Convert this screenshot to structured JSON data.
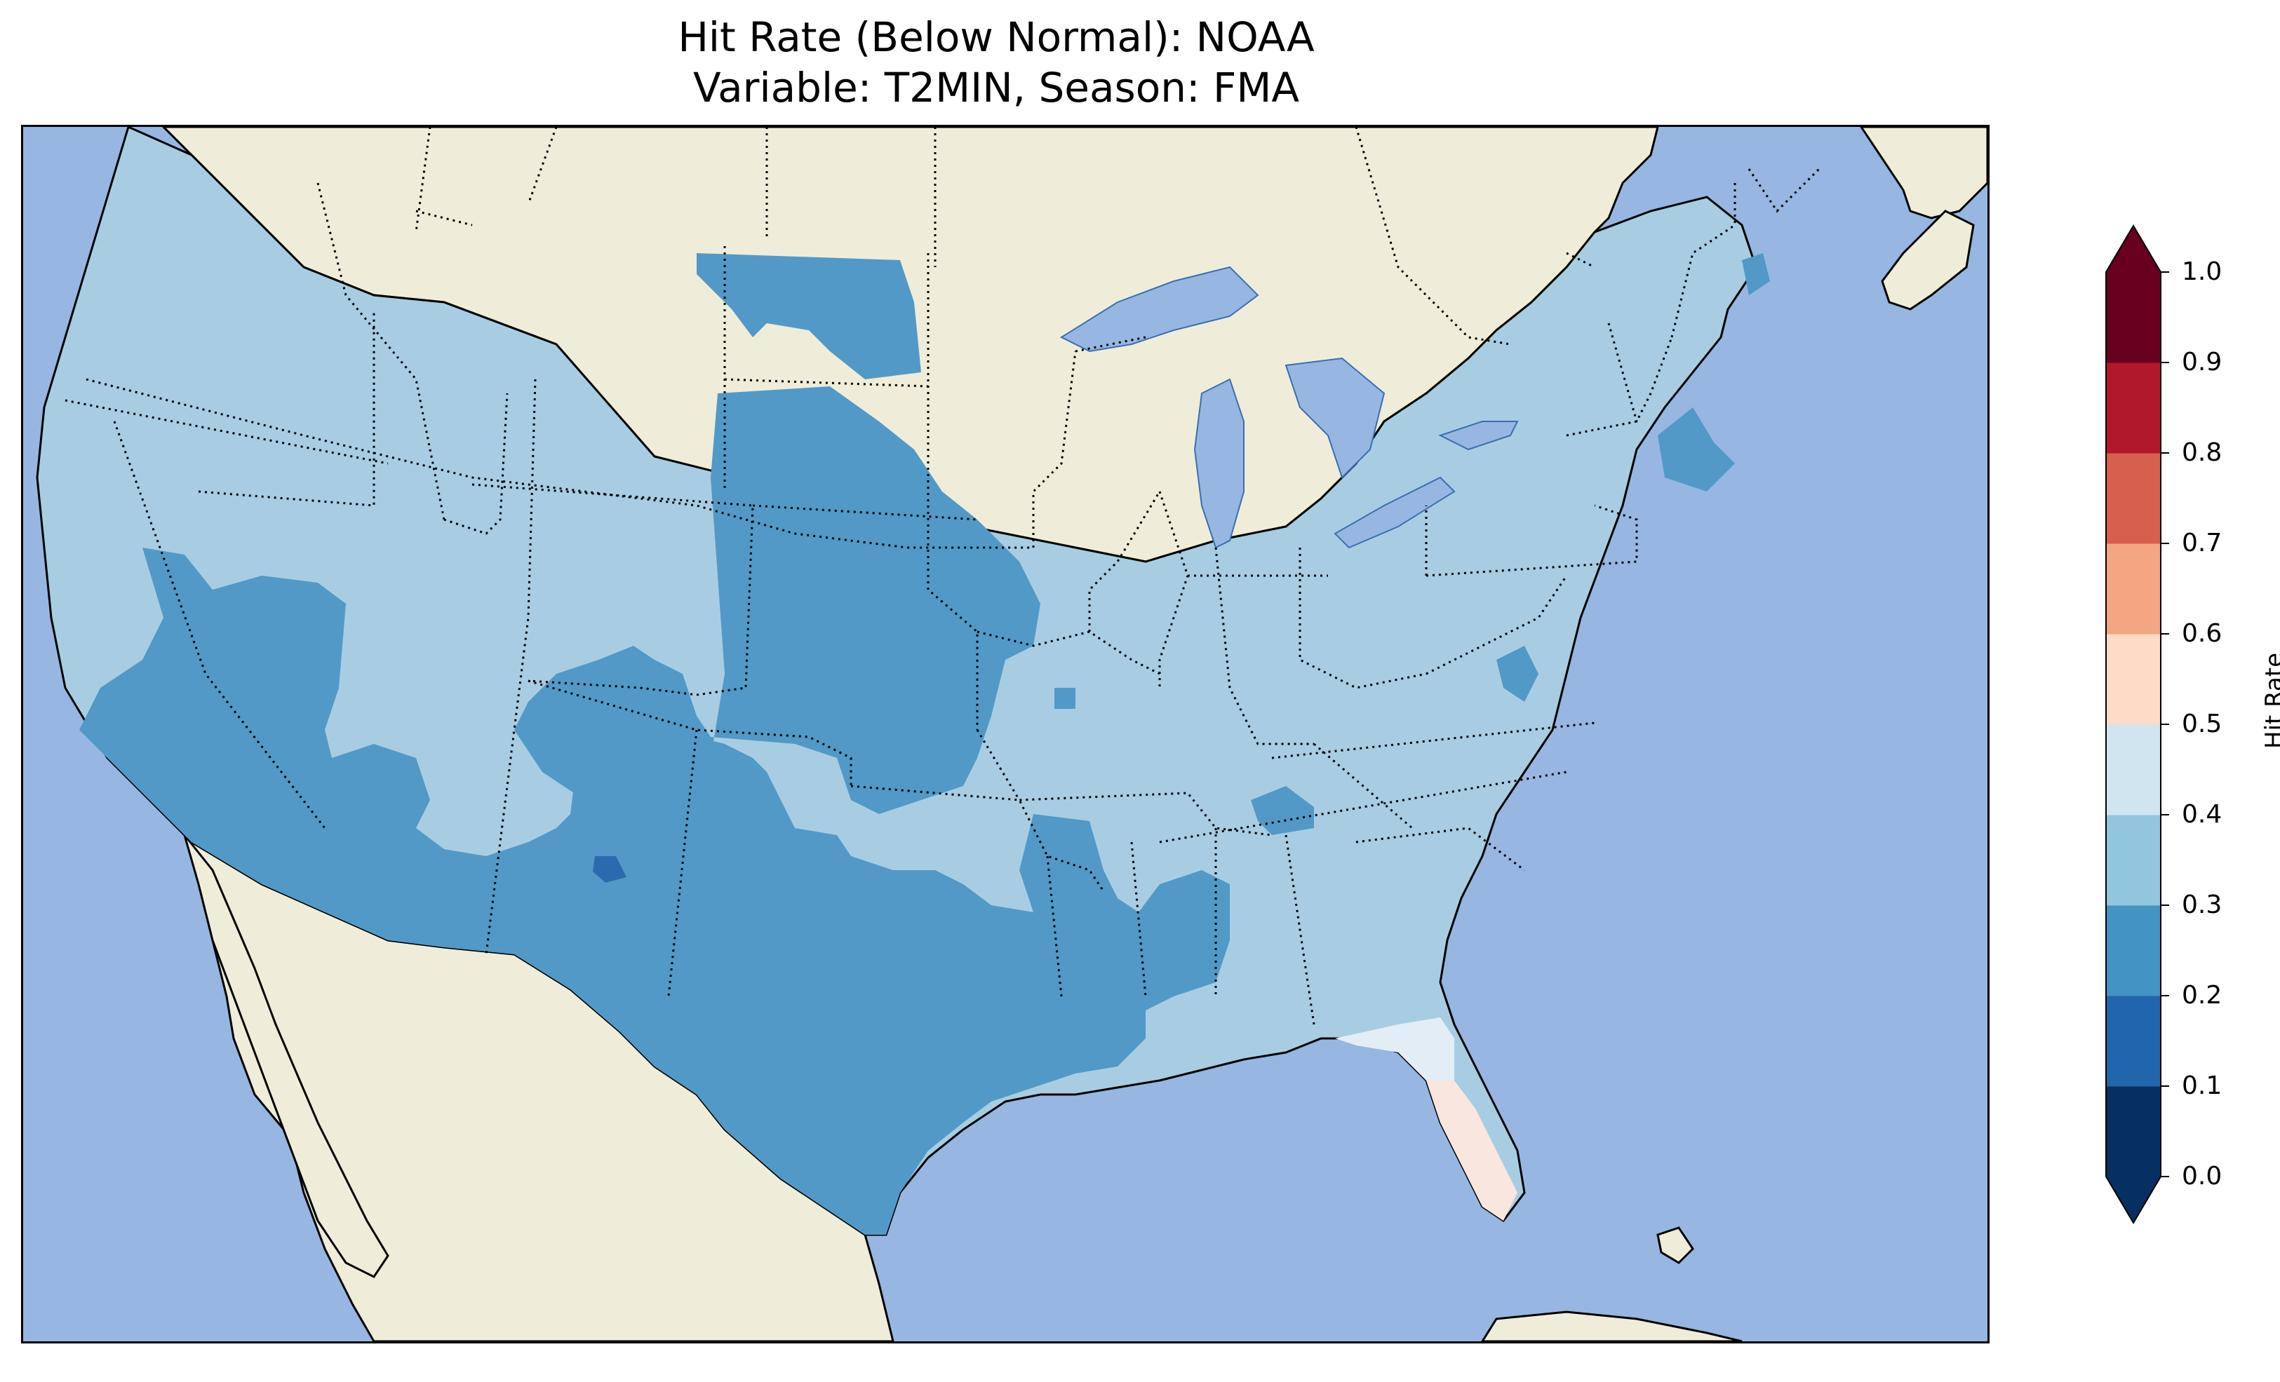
{
  "title": {
    "line1": "Hit Rate (Below Normal): NOAA",
    "line2": "Variable: T2MIN, Season: FMA"
  },
  "map": {
    "ocean_color": "#97b6e1",
    "land_color": "#efedda",
    "lake_color": "#97b6e1",
    "border_style": "dotted",
    "coast_style": "solid-black"
  },
  "colorbar": {
    "label": "Hit Rate",
    "ticks": [
      "0.0",
      "0.1",
      "0.2",
      "0.3",
      "0.4",
      "0.5",
      "0.6",
      "0.7",
      "0.8",
      "0.9",
      "1.0"
    ],
    "bins": [
      {
        "range": [
          0.0,
          0.1
        ],
        "color": "#053061"
      },
      {
        "range": [
          0.1,
          0.2
        ],
        "color": "#2166ac"
      },
      {
        "range": [
          0.2,
          0.3
        ],
        "color": "#4393c3"
      },
      {
        "range": [
          0.3,
          0.4
        ],
        "color": "#92c5de"
      },
      {
        "range": [
          0.4,
          0.5
        ],
        "color": "#d1e5f0"
      },
      {
        "range": [
          0.5,
          0.6
        ],
        "color": "#fddbc7"
      },
      {
        "range": [
          0.6,
          0.7
        ],
        "color": "#f4a582"
      },
      {
        "range": [
          0.7,
          0.8
        ],
        "color": "#d6604d"
      },
      {
        "range": [
          0.8,
          0.9
        ],
        "color": "#b2182b"
      },
      {
        "range": [
          0.9,
          1.0
        ],
        "color": "#67001f"
      }
    ],
    "under_color": "#053061",
    "over_color": "#67001f",
    "extend": "both"
  },
  "regions": [
    {
      "name": "Pacific Northwest, Great Basin, Rockies, Midwest, Northeast",
      "hit_rate_bin": "0.3-0.4"
    },
    {
      "name": "Northern Plains, Central Plains, California, Southwest, Texas, Lower Mississippi",
      "hit_rate_bin": "0.2-0.3"
    },
    {
      "name": "Small area in New Mexico",
      "hit_rate_bin": "0.1-0.2"
    },
    {
      "name": "Florida Panhandle, Southern Georgia",
      "hit_rate_bin": "0.4-0.5"
    },
    {
      "name": "Florida Peninsula",
      "hit_rate_bin": "0.5-0.6"
    }
  ]
}
